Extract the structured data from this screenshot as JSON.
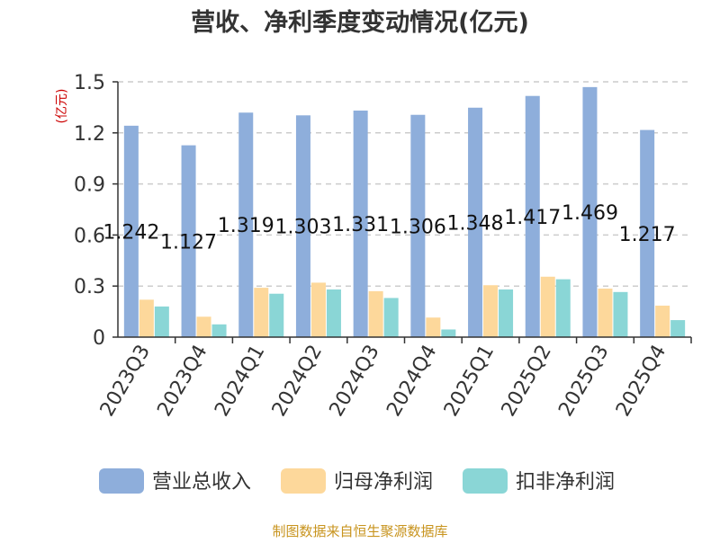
{
  "chart_data": {
    "type": "bar",
    "title": "营收、净利季度变动情况(亿元)",
    "ylabel": "(亿元)",
    "ylim": [
      0,
      1.5
    ],
    "yticks": [
      "0",
      "0.3",
      "0.6",
      "0.9",
      "1.2",
      "1.5"
    ],
    "grid": true,
    "legend_position": "bottom",
    "categories": [
      "2023Q3",
      "2023Q4",
      "2024Q1",
      "2024Q2",
      "2024Q3",
      "2024Q4",
      "2025Q1",
      "2025Q2",
      "2025Q3",
      "2025Q4"
    ],
    "series": [
      {
        "name": "营业总收入",
        "color": "#8eaedb",
        "values": [
          1.242,
          1.127,
          1.319,
          1.303,
          1.331,
          1.306,
          1.348,
          1.417,
          1.469,
          1.217
        ],
        "labels": [
          "1.242",
          "1.127",
          "1.319",
          "1.303",
          "1.331",
          "1.306",
          "1.348",
          "1.417",
          "1.469",
          "1.217"
        ]
      },
      {
        "name": "归母净利润",
        "color": "#fdd89b",
        "values": [
          0.22,
          0.12,
          0.29,
          0.32,
          0.27,
          0.115,
          0.305,
          0.355,
          0.285,
          0.185
        ]
      },
      {
        "name": "扣非净利润",
        "color": "#8ad6d6",
        "values": [
          0.18,
          0.075,
          0.255,
          0.28,
          0.23,
          0.045,
          0.28,
          0.34,
          0.265,
          0.1
        ]
      }
    ]
  },
  "source_note": "制图数据来自恒生聚源数据库",
  "colors": {
    "title": "#333333",
    "ylabel": "#cc0000",
    "source": "#c8941e",
    "grid": "#cccccc",
    "axis": "#333333"
  }
}
